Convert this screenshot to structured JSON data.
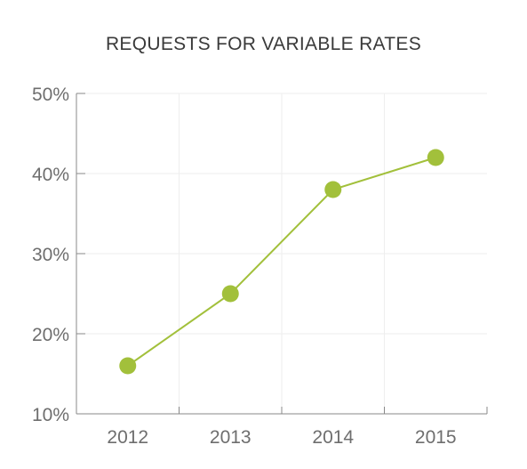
{
  "chart_data": {
    "type": "line",
    "title": "REQUESTS FOR VARIABLE RATES",
    "xlabel": "",
    "ylabel": "",
    "categories": [
      "2012",
      "2013",
      "2014",
      "2015"
    ],
    "series": [
      {
        "values": [
          16,
          25,
          38,
          42
        ]
      }
    ],
    "ylim": [
      10,
      50
    ],
    "yticks": [
      10,
      20,
      30,
      40,
      50
    ],
    "ytick_labels": [
      "10%",
      "20%",
      "30%",
      "40%",
      "50%"
    ],
    "grid": true,
    "legend": "none",
    "colors": {
      "line": "#a2c03b",
      "marker": "#a2c03b",
      "axis": "#888888",
      "grid": "#eeeeee"
    }
  }
}
